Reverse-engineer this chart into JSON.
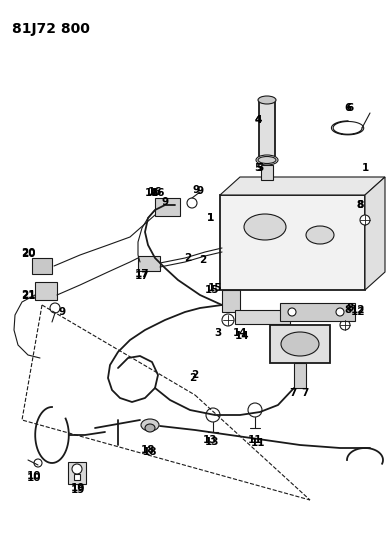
{
  "title": "81J72 800",
  "bg_color": "#ffffff",
  "line_color": "#1a1a1a",
  "label_color": "#000000",
  "title_fontsize": 10,
  "label_fontsize": 7.5
}
